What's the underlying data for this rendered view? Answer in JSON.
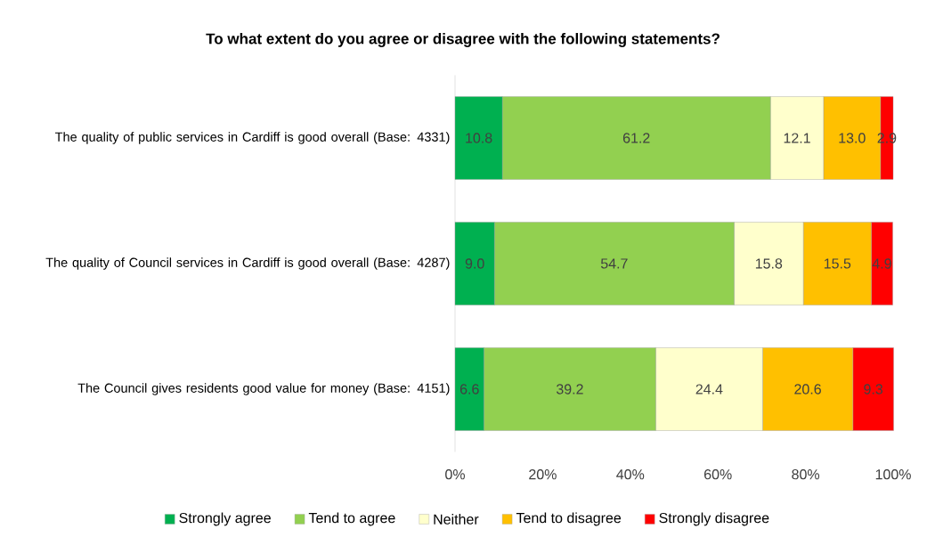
{
  "chart_data": {
    "type": "bar",
    "orientation": "horizontal",
    "stacked": true,
    "title": "To what extent do you agree or disagree with the following statements?",
    "categories": [
      "The quality of public services in Cardiff is good overall (Base: 4331)",
      "The quality of Council services in Cardiff is good overall (Base: 4287)",
      "The Council gives residents good value for money (Base: 4151)"
    ],
    "series": [
      {
        "name": "Strongly agree",
        "color": "#00b050",
        "values": [
          10.8,
          9.0,
          6.6
        ],
        "value_labels": [
          "10.8",
          "9.0",
          "6.6"
        ]
      },
      {
        "name": "Tend to agree",
        "color": "#92d050",
        "values": [
          61.2,
          54.7,
          39.2
        ],
        "value_labels": [
          "61.2",
          "54.7",
          "39.2"
        ]
      },
      {
        "name": "Neither",
        "color": "#ffffcc",
        "values": [
          12.1,
          15.8,
          24.4
        ],
        "value_labels": [
          "12.1",
          "15.8",
          "24.4"
        ]
      },
      {
        "name": "Tend to disagree",
        "color": "#ffc000",
        "values": [
          13.0,
          15.5,
          20.6
        ],
        "value_labels": [
          "13.0",
          "15.5",
          "20.6"
        ]
      },
      {
        "name": "Strongly disagree",
        "color": "#ff0000",
        "values": [
          2.9,
          4.9,
          9.3
        ],
        "value_labels": [
          "2.9",
          "4.9",
          "9.3"
        ]
      }
    ],
    "xlim": [
      0,
      100
    ],
    "xticks": [
      {
        "value": 0,
        "label": "0%"
      },
      {
        "value": 20,
        "label": "20%"
      },
      {
        "value": 40,
        "label": "40%"
      },
      {
        "value": 60,
        "label": "60%"
      },
      {
        "value": 80,
        "label": "80%"
      },
      {
        "value": 100,
        "label": "100%"
      }
    ],
    "legend": "bottom"
  }
}
